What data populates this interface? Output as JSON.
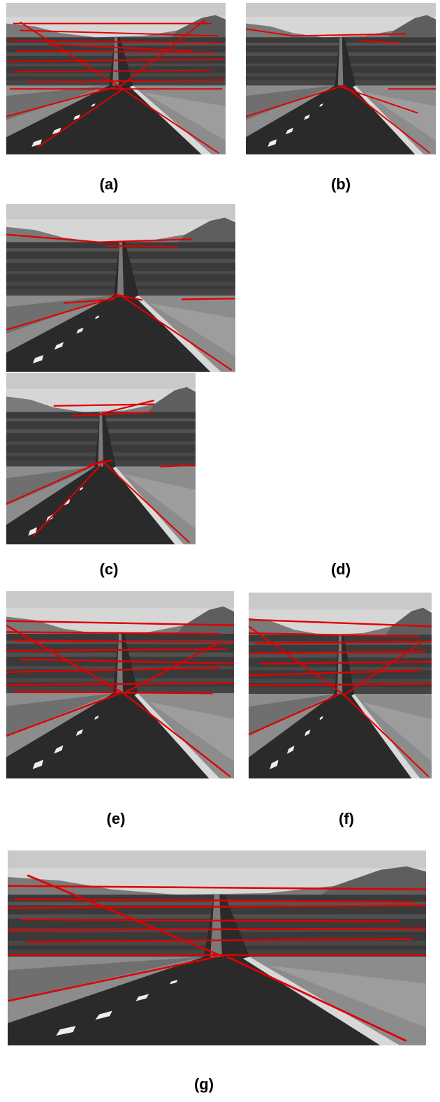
{
  "figure": {
    "panels": [
      {
        "id": "a",
        "caption": "(a)",
        "detected_lines": "many"
      },
      {
        "id": "b",
        "caption": "(b)",
        "detected_lines": "few"
      },
      {
        "id": "c",
        "caption": "(c)",
        "detected_lines": "few"
      },
      {
        "id": "d",
        "caption": "(d)",
        "detected_lines": "few"
      },
      {
        "id": "e",
        "caption": "(e)",
        "detected_lines": "many"
      },
      {
        "id": "f",
        "caption": "(f)",
        "detected_lines": "many"
      },
      {
        "id": "g",
        "caption": "(g)",
        "detected_lines": "many"
      }
    ],
    "line_color": "#e00000",
    "image_tone": "grayscale"
  }
}
